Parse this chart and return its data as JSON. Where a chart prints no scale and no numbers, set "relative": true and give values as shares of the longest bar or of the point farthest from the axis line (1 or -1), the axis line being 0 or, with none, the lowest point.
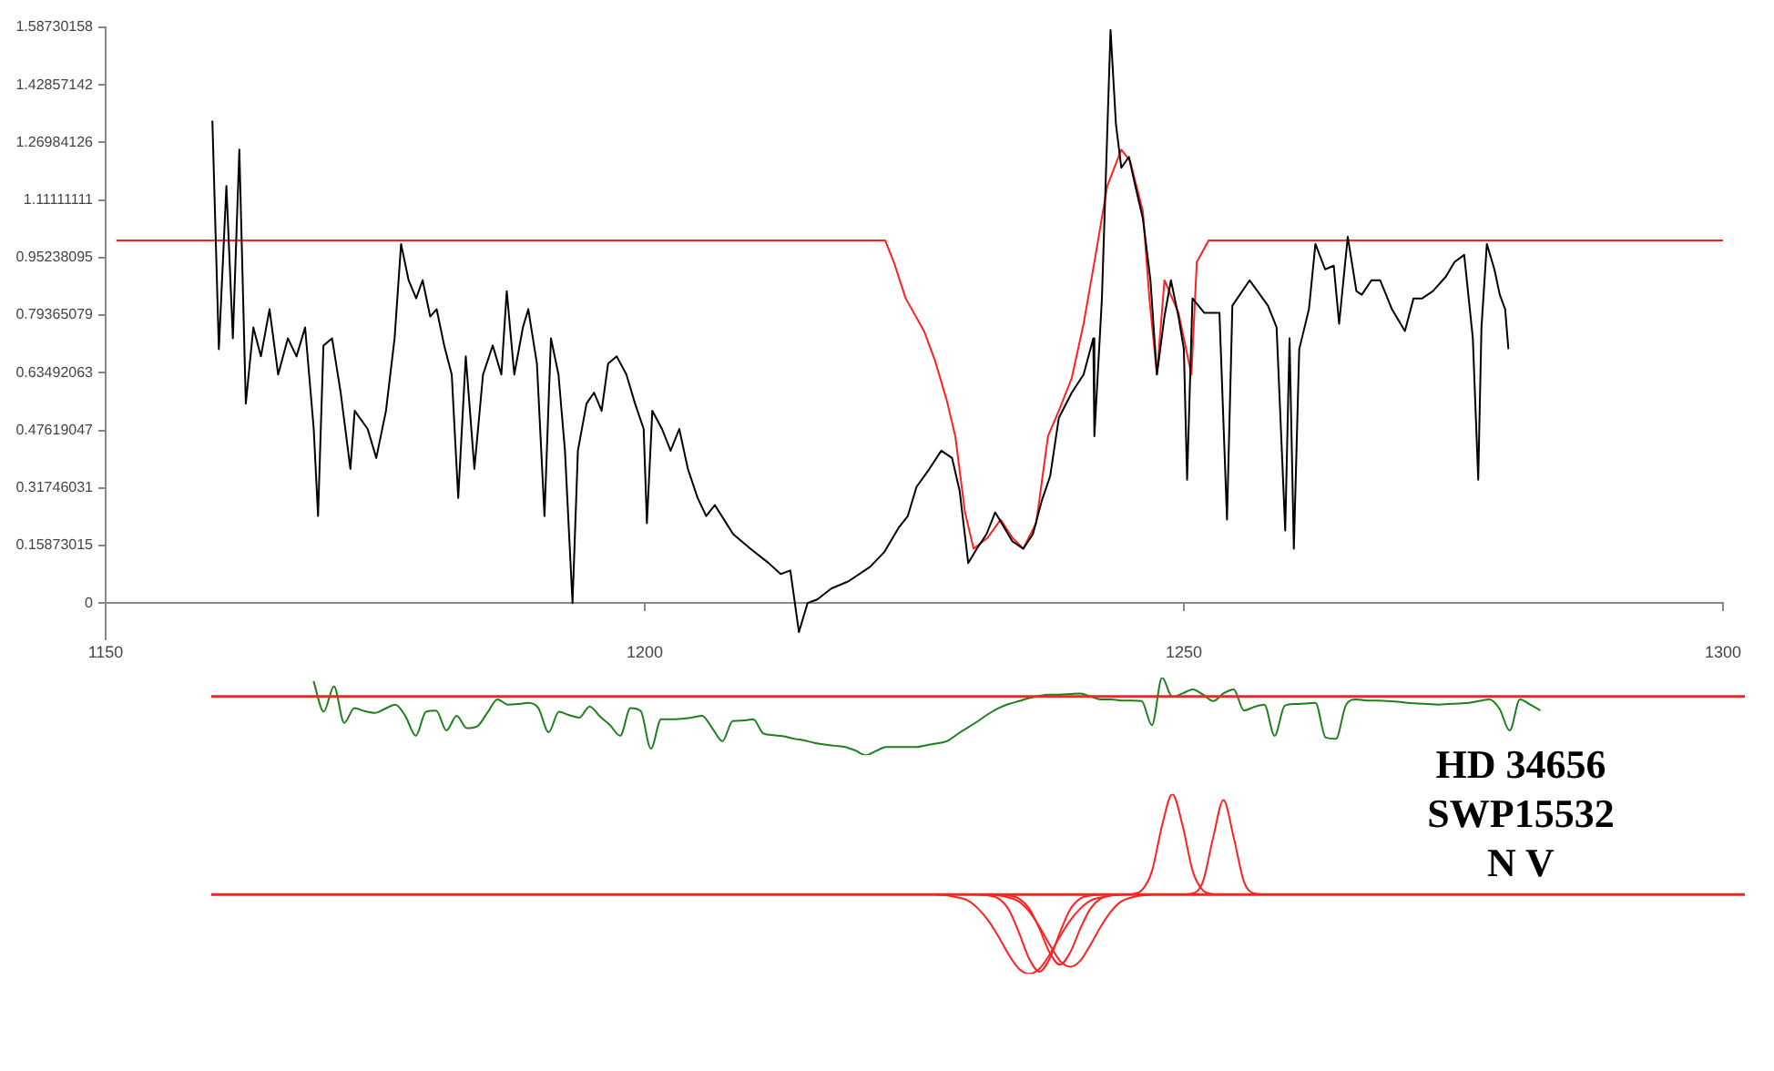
{
  "chart_data": [
    {
      "type": "line",
      "xlim": [
        1150,
        1300
      ],
      "xticks": [
        1150,
        1200,
        1250,
        1300
      ],
      "ylim": [
        -0.1,
        1.58730158
      ],
      "yticks": [
        0,
        0.15873015,
        0.31746031,
        0.47619047,
        0.63492063,
        0.79365079,
        0.95238095,
        1.11111111,
        1.26984126,
        1.42857142,
        1.58730158
      ],
      "series": [
        {
          "color": "#000000",
          "x": [
            1159.9,
            1160.5,
            1161.2,
            1161.8,
            1162.4,
            1163.0,
            1163.7,
            1164.4,
            1165.2,
            1166.0,
            1166.9,
            1167.7,
            1168.5,
            1169.3,
            1169.7,
            1170.2,
            1171.0,
            1171.8,
            1172.7,
            1173.1,
            1174.3,
            1175.1,
            1176.0,
            1176.8,
            1177.4,
            1178.1,
            1178.8,
            1179.4,
            1180.1,
            1180.7,
            1181.4,
            1182.1,
            1182.7,
            1183.4,
            1184.2,
            1185.0,
            1185.9,
            1186.7,
            1187.2,
            1187.9,
            1188.7,
            1189.2,
            1190.0,
            1190.7,
            1191.3,
            1192.0,
            1192.6,
            1193.3,
            1193.8,
            1194.6,
            1195.3,
            1196.0,
            1196.6,
            1197.4,
            1198.3,
            1199.1,
            1199.9,
            1200.2,
            1200.7,
            1201.6,
            1202.4,
            1203.2,
            1204.0,
            1204.9,
            1205.7,
            1206.5,
            1208.2,
            1209.8,
            1211.5,
            1212.6,
            1213.5,
            1214.3,
            1215.1,
            1216.0,
            1217.3,
            1218.9,
            1220.9,
            1222.2,
            1223.6,
            1224.4,
            1225.2,
            1226.4,
            1227.5,
            1228.5,
            1229.2,
            1230.0,
            1230.8,
            1231.7,
            1232.5,
            1233.3,
            1234.1,
            1235.1,
            1236.0,
            1236.8,
            1237.6,
            1238.4,
            1239.6,
            1240.7,
            1241.6,
            1241.7,
            1242.4,
            1243.2,
            1243.7,
            1244.2,
            1244.9,
            1245.5,
            1246.2,
            1246.9,
            1247.5,
            1248.2,
            1248.8,
            1249.5,
            1250.0,
            1250.3,
            1250.8,
            1251.9,
            1253.3,
            1254.0,
            1254.5,
            1256.1,
            1257.8,
            1258.6,
            1259.4,
            1259.8,
            1260.2,
            1260.7,
            1261.6,
            1262.2,
            1263.1,
            1263.9,
            1264.4,
            1265.2,
            1266.0,
            1266.5,
            1267.4,
            1268.2,
            1269.3,
            1270.5,
            1271.3,
            1272.1,
            1273.1,
            1274.3,
            1275.1,
            1276.0,
            1276.8,
            1277.3,
            1277.6,
            1278.1,
            1278.8,
            1279.3,
            1279.8,
            1280.1
          ],
          "values": [
            1.33,
            0.7,
            1.15,
            0.73,
            1.25,
            0.55,
            0.76,
            0.68,
            0.81,
            0.63,
            0.73,
            0.68,
            0.76,
            0.48,
            0.24,
            0.71,
            0.73,
            0.58,
            0.37,
            0.53,
            0.48,
            0.4,
            0.53,
            0.73,
            0.99,
            0.89,
            0.84,
            0.89,
            0.79,
            0.81,
            0.71,
            0.63,
            0.29,
            0.68,
            0.37,
            0.63,
            0.71,
            0.63,
            0.86,
            0.63,
            0.76,
            0.81,
            0.66,
            0.24,
            0.73,
            0.63,
            0.42,
            0,
            0.42,
            0.55,
            0.58,
            0.53,
            0.66,
            0.68,
            0.63,
            0.55,
            0.48,
            0.22,
            0.53,
            0.48,
            0.42,
            0.48,
            0.37,
            0.29,
            0.24,
            0.27,
            0.19,
            0.15,
            0.11,
            0.08,
            0.09,
            -0.08,
            0,
            0.01,
            0.04,
            0.06,
            0.1,
            0.14,
            0.21,
            0.24,
            0.32,
            0.37,
            0.42,
            0.4,
            0.31,
            0.11,
            0.15,
            0.19,
            0.25,
            0.21,
            0.17,
            0.15,
            0.19,
            0.28,
            0.35,
            0.51,
            0.58,
            0.63,
            0.73,
            0.46,
            0.84,
            1.58,
            1.32,
            1.2,
            1.23,
            1.15,
            1.06,
            0.89,
            0.63,
            0.79,
            0.89,
            0.79,
            0.7,
            0.34,
            0.84,
            0.8,
            0.8,
            0.23,
            0.82,
            0.89,
            0.82,
            0.76,
            0.2,
            0.73,
            0.15,
            0.7,
            0.81,
            0.99,
            0.92,
            0.93,
            0.77,
            1.01,
            0.86,
            0.85,
            0.89,
            0.89,
            0.81,
            0.75,
            0.84,
            0.84,
            0.86,
            0.9,
            0.94,
            0.96,
            0.73,
            0.34,
            0.76,
            0.99,
            0.92,
            0.85,
            0.81,
            0.7
          ]
        },
        {
          "color": "#ff2020",
          "x": [
            1151,
            1222.3,
            1223.1,
            1224.2,
            1225.9,
            1226.9,
            1228.0,
            1228.8,
            1229.7,
            1230.5,
            1231.8,
            1233.0,
            1234.1,
            1235.1,
            1236.3,
            1237.4,
            1238.4,
            1239.6,
            1240.7,
            1241.7,
            1242.9,
            1244.2,
            1245.0,
            1246.2,
            1246.8,
            1247.5,
            1248.2,
            1249.5,
            1250.7,
            1251.2,
            1252.3,
            1300
          ],
          "values": [
            1,
            1,
            0.94,
            0.84,
            0.75,
            0.67,
            0.56,
            0.46,
            0.25,
            0.15,
            0.18,
            0.23,
            0.18,
            0.15,
            0.22,
            0.46,
            0.53,
            0.62,
            0.77,
            0.94,
            1.15,
            1.25,
            1.22,
            1.08,
            0.84,
            0.63,
            0.89,
            0.8,
            0.63,
            0.94,
            1,
            1
          ]
        }
      ]
    },
    {
      "type": "line",
      "relative": true,
      "ref_lines": [
        {
          "axis": "y",
          "value": 0,
          "color": "#ff2020"
        }
      ],
      "categories": [
        null,
        null,
        null,
        null,
        null,
        null,
        null,
        null,
        null,
        null,
        null,
        null,
        null,
        null,
        null,
        null,
        null,
        null,
        null,
        null,
        null,
        null,
        null,
        null,
        null,
        null,
        null,
        null,
        null,
        null,
        null,
        null,
        null,
        null,
        null,
        null,
        null,
        null,
        null,
        null,
        null,
        null,
        null,
        null,
        null,
        null,
        null,
        null,
        null,
        null,
        null,
        null,
        null,
        null,
        null,
        null,
        null,
        null,
        null,
        null,
        null,
        null,
        null,
        null,
        null,
        null,
        null,
        null,
        null,
        null,
        null,
        null,
        null,
        null,
        null,
        null,
        null,
        null,
        null,
        null,
        null,
        null,
        null,
        null,
        null,
        null,
        null,
        null,
        null,
        null,
        null,
        null,
        null,
        null,
        null,
        null,
        null,
        null,
        null,
        null,
        null,
        null,
        null,
        null,
        null,
        null,
        null,
        null,
        null,
        null,
        null,
        null,
        null,
        null,
        null,
        null,
        null,
        null,
        null,
        null,
        null,
        null,
        null,
        null,
        null,
        null,
        null,
        null,
        null,
        null,
        null,
        null,
        null,
        null,
        null,
        null,
        null,
        null,
        null,
        null,
        null,
        null,
        null,
        null,
        null,
        null,
        null,
        null,
        null,
        null,
        null
      ],
      "series": [
        {
          "color": "#1f7f1f",
          "values": [
            null,
            null,
            null,
            null,
            null,
            null,
            null,
            null,
            null,
            null,
            0.26,
            -0.26,
            0.17,
            -0.45,
            -0.2,
            -0.25,
            -0.28,
            -0.21,
            -0.14,
            -0.34,
            -0.67,
            -0.26,
            -0.24,
            -0.58,
            -0.33,
            -0.54,
            -0.51,
            -0.28,
            -0.05,
            -0.14,
            -0.13,
            -0.11,
            -0.2,
            -0.61,
            -0.26,
            -0.32,
            -0.36,
            -0.17,
            -0.34,
            -0.49,
            -0.67,
            -0.2,
            -0.25,
            -0.89,
            -0.39,
            -0.39,
            -0.38,
            -0.36,
            -0.33,
            -0.54,
            -0.76,
            -0.42,
            -0.41,
            -0.39,
            -0.63,
            -0.66,
            -0.68,
            -0.72,
            -0.75,
            -0.79,
            -0.82,
            -0.84,
            -0.86,
            -0.92,
            -1,
            -0.93,
            -0.86,
            -0.86,
            -0.86,
            -0.86,
            -0.83,
            -0.8,
            -0.76,
            -0.64,
            -0.53,
            -0.42,
            -0.3,
            -0.2,
            -0.13,
            -0.08,
            -0.03,
            0.01,
            0.03,
            0.03,
            0.04,
            0.05,
            0,
            -0.05,
            -0.05,
            -0.07,
            -0.07,
            -0.08,
            -0.49,
            0.32,
            -0.01,
            0.05,
            0.12,
            0.03,
            -0.08,
            0.05,
            0.12,
            -0.24,
            -0.18,
            -0.14,
            -0.67,
            -0.16,
            -0.13,
            -0.12,
            -0.11,
            -0.7,
            -0.72,
            -0.14,
            -0.05,
            -0.07,
            -0.07,
            -0.08,
            -0.09,
            -0.11,
            -0.12,
            -0.13,
            -0.14,
            -0.13,
            -0.12,
            -0.11,
            -0.08,
            -0.05,
            -0.21,
            -0.58,
            -0.05,
            -0.14,
            -0.24,
            null,
            null,
            null,
            null,
            null,
            null,
            null,
            null,
            null,
            null,
            null,
            null,
            null,
            null,
            null,
            null,
            null,
            null,
            null,
            null
          ]
        }
      ]
    },
    {
      "type": "line",
      "relative": true,
      "ref_lines": [
        {
          "axis": "y",
          "value": 0,
          "color": "#ff2020"
        }
      ],
      "annotations": [
        "HD 34656",
        "SWP15532",
        "N V"
      ],
      "categories": [
        null,
        null,
        null,
        null,
        null,
        null,
        null,
        null,
        null,
        null,
        null,
        null,
        null,
        null,
        null,
        null,
        null,
        null,
        null,
        null,
        null,
        null,
        null,
        null,
        null,
        null,
        null,
        null,
        null,
        null,
        null,
        null,
        null,
        null,
        null,
        null,
        null,
        null,
        null,
        null,
        null,
        null,
        null,
        null,
        null,
        null,
        null,
        null,
        null,
        null,
        null,
        null,
        null,
        null,
        null,
        null,
        null,
        null,
        null,
        null,
        null,
        null,
        null,
        null,
        null,
        null,
        null,
        null,
        null,
        null,
        null,
        null,
        null,
        null,
        null,
        null,
        null,
        null,
        null,
        null,
        null,
        null,
        null,
        null,
        null,
        null,
        null,
        null,
        null,
        null,
        null,
        null,
        null,
        null,
        null,
        null,
        null,
        null,
        null,
        null,
        null,
        null,
        null,
        null,
        null,
        null,
        null,
        null,
        null,
        null,
        null,
        null,
        null,
        null,
        null,
        null,
        null,
        null,
        null,
        null,
        null,
        null,
        null,
        null,
        null,
        null,
        null,
        null,
        null,
        null,
        null,
        null,
        null,
        null,
        null,
        null,
        null,
        null,
        null,
        null,
        null,
        null,
        null,
        null,
        null,
        null,
        null,
        null,
        null,
        null,
        null
      ],
      "series": [
        {
          "color": "#ff2020",
          "values": [
            null,
            null,
            null,
            null,
            null,
            null,
            null,
            null,
            null,
            null,
            null,
            null,
            null,
            null,
            null,
            null,
            null,
            null,
            null,
            null,
            null,
            null,
            null,
            null,
            null,
            null,
            null,
            null,
            null,
            null,
            null,
            null,
            null,
            null,
            null,
            null,
            null,
            null,
            null,
            null,
            null,
            null,
            null,
            null,
            null,
            null,
            null,
            null,
            null,
            null,
            null,
            null,
            null,
            null,
            null,
            null,
            null,
            null,
            null,
            null,
            null,
            null,
            null,
            null,
            null,
            null,
            null,
            null,
            null,
            null,
            null,
            0,
            -0.01,
            -0.03,
            -0.06,
            -0.14,
            -0.26,
            -0.42,
            -0.6,
            -0.74,
            -0.79,
            -0.74,
            -0.6,
            -0.42,
            -0.26,
            -0.14,
            -0.06,
            -0.03,
            -0.01,
            0,
            null,
            null,
            null,
            null,
            null,
            null,
            null,
            null,
            null,
            null,
            null,
            null,
            null,
            null,
            null,
            null,
            null,
            null,
            null,
            null,
            null,
            null,
            null,
            null,
            null,
            null,
            null,
            null,
            null,
            null,
            null,
            null,
            null,
            null,
            null,
            null,
            null,
            null,
            null,
            null,
            null,
            null,
            null,
            null,
            null,
            null,
            null,
            null,
            null,
            null,
            null,
            null,
            null,
            null,
            null,
            null,
            null,
            null,
            null,
            null,
            null
          ]
        },
        {
          "color": "#ff2020",
          "values": [
            null,
            null,
            null,
            null,
            null,
            null,
            null,
            null,
            null,
            null,
            null,
            null,
            null,
            null,
            null,
            null,
            null,
            null,
            null,
            null,
            null,
            null,
            null,
            null,
            null,
            null,
            null,
            null,
            null,
            null,
            null,
            null,
            null,
            null,
            null,
            null,
            null,
            null,
            null,
            null,
            null,
            null,
            null,
            null,
            null,
            null,
            null,
            null,
            null,
            null,
            null,
            null,
            null,
            null,
            null,
            null,
            null,
            null,
            null,
            null,
            null,
            null,
            null,
            null,
            null,
            null,
            null,
            null,
            null,
            null,
            null,
            null,
            null,
            null,
            null,
            0,
            -0.01,
            -0.04,
            -0.15,
            -0.38,
            -0.64,
            -0.77,
            -0.64,
            -0.38,
            -0.15,
            -0.04,
            -0.01,
            0,
            null,
            null,
            null,
            null,
            null,
            null,
            null,
            null,
            null,
            null,
            null,
            null,
            null,
            null,
            null,
            null,
            null,
            null,
            null,
            null,
            null,
            null,
            null,
            null,
            null,
            null,
            null,
            null,
            null,
            null,
            null,
            null,
            null,
            null,
            null,
            null,
            null,
            null,
            null,
            null,
            null,
            null,
            null,
            null,
            null,
            null,
            null,
            null,
            null,
            null,
            null,
            null,
            null,
            null,
            null,
            null,
            null,
            null,
            null,
            null,
            null,
            null,
            null
          ]
        },
        {
          "color": "#ff2020",
          "values": [
            null,
            null,
            null,
            null,
            null,
            null,
            null,
            null,
            null,
            null,
            null,
            null,
            null,
            null,
            null,
            null,
            null,
            null,
            null,
            null,
            null,
            null,
            null,
            null,
            null,
            null,
            null,
            null,
            null,
            null,
            null,
            null,
            null,
            null,
            null,
            null,
            null,
            null,
            null,
            null,
            null,
            null,
            null,
            null,
            null,
            null,
            null,
            null,
            null,
            null,
            null,
            null,
            null,
            null,
            null,
            null,
            null,
            null,
            null,
            null,
            null,
            null,
            null,
            null,
            null,
            null,
            null,
            null,
            null,
            null,
            null,
            null,
            null,
            null,
            null,
            null,
            null,
            0,
            -0.01,
            -0.04,
            -0.14,
            -0.34,
            -0.58,
            -0.7,
            -0.58,
            -0.34,
            -0.14,
            -0.04,
            -0.01,
            0,
            null,
            null,
            null,
            null,
            null,
            null,
            null,
            null,
            null,
            null,
            null,
            null,
            null,
            null,
            null,
            null,
            null,
            null,
            null,
            null,
            null,
            null,
            null,
            null,
            null,
            null,
            null,
            null,
            null,
            null,
            null,
            null,
            null,
            null,
            null,
            null,
            null,
            null,
            null,
            null,
            null,
            null,
            null,
            null,
            null,
            null,
            null,
            null,
            null,
            null,
            null,
            null,
            null,
            null,
            null,
            null,
            null,
            null,
            null,
            null,
            null
          ]
        },
        {
          "color": "#ff2020",
          "values": [
            null,
            null,
            null,
            null,
            null,
            null,
            null,
            null,
            null,
            null,
            null,
            null,
            null,
            null,
            null,
            null,
            null,
            null,
            null,
            null,
            null,
            null,
            null,
            null,
            null,
            null,
            null,
            null,
            null,
            null,
            null,
            null,
            null,
            null,
            null,
            null,
            null,
            null,
            null,
            null,
            null,
            null,
            null,
            null,
            null,
            null,
            null,
            null,
            null,
            null,
            null,
            null,
            null,
            null,
            null,
            null,
            null,
            null,
            null,
            null,
            null,
            null,
            null,
            null,
            null,
            null,
            null,
            null,
            null,
            null,
            null,
            null,
            null,
            null,
            null,
            null,
            0,
            -0.01,
            -0.03,
            -0.07,
            -0.17,
            -0.32,
            -0.5,
            -0.66,
            -0.72,
            -0.66,
            -0.5,
            -0.32,
            -0.17,
            -0.07,
            -0.03,
            -0.01,
            0,
            null,
            null,
            null,
            null,
            null,
            null,
            null,
            null,
            null,
            null,
            null,
            null,
            null,
            null,
            null,
            null,
            null,
            null,
            null,
            null,
            null,
            null,
            null,
            null,
            null,
            null,
            null,
            null,
            null,
            null,
            null,
            null,
            null,
            null,
            null,
            null,
            null,
            null,
            null,
            null,
            null,
            null,
            null,
            null,
            null,
            null,
            null,
            null,
            null,
            null,
            null,
            null,
            null,
            null,
            null,
            null,
            null,
            null
          ]
        },
        {
          "color": "#ff2020",
          "values": [
            null,
            null,
            null,
            null,
            null,
            null,
            null,
            null,
            null,
            null,
            null,
            null,
            null,
            null,
            null,
            null,
            null,
            null,
            null,
            null,
            null,
            null,
            null,
            null,
            null,
            null,
            null,
            null,
            null,
            null,
            null,
            null,
            null,
            null,
            null,
            null,
            null,
            null,
            null,
            null,
            null,
            null,
            null,
            null,
            null,
            null,
            null,
            null,
            null,
            null,
            null,
            null,
            null,
            null,
            null,
            null,
            null,
            null,
            null,
            null,
            null,
            null,
            null,
            null,
            null,
            null,
            null,
            null,
            null,
            null,
            null,
            null,
            null,
            null,
            null,
            null,
            null,
            null,
            null,
            null,
            null,
            null,
            null,
            null,
            null,
            null,
            null,
            null,
            null,
            null,
            0,
            0.04,
            0.23,
            0.69,
            1,
            0.69,
            0.23,
            0.04,
            0,
            null,
            null,
            null,
            null,
            null,
            null,
            null,
            null,
            null,
            null,
            null,
            null,
            null,
            null,
            null,
            null,
            null,
            null,
            null,
            null,
            null,
            null,
            null,
            null,
            null,
            null,
            null,
            null,
            null,
            null,
            null,
            null,
            null,
            null,
            null,
            null,
            null,
            null,
            null,
            null,
            null,
            null,
            null,
            null,
            null,
            null,
            null,
            null,
            null,
            null,
            null,
            null
          ]
        },
        {
          "color": "#ff2020",
          "values": [
            null,
            null,
            null,
            null,
            null,
            null,
            null,
            null,
            null,
            null,
            null,
            null,
            null,
            null,
            null,
            null,
            null,
            null,
            null,
            null,
            null,
            null,
            null,
            null,
            null,
            null,
            null,
            null,
            null,
            null,
            null,
            null,
            null,
            null,
            null,
            null,
            null,
            null,
            null,
            null,
            null,
            null,
            null,
            null,
            null,
            null,
            null,
            null,
            null,
            null,
            null,
            null,
            null,
            null,
            null,
            null,
            null,
            null,
            null,
            null,
            null,
            null,
            null,
            null,
            null,
            null,
            null,
            null,
            null,
            null,
            null,
            null,
            null,
            null,
            null,
            null,
            null,
            null,
            null,
            null,
            null,
            null,
            null,
            null,
            null,
            null,
            null,
            null,
            null,
            null,
            null,
            null,
            null,
            null,
            null,
            0,
            0.01,
            0.13,
            0.57,
            0.94,
            0.57,
            0.13,
            0.01,
            0,
            null,
            null,
            null,
            null,
            null,
            null,
            null,
            null,
            null,
            null,
            null,
            null,
            null,
            null,
            null,
            null,
            null,
            null,
            null,
            null,
            null,
            null,
            null,
            null,
            null,
            null,
            null,
            null,
            null,
            null,
            null,
            null,
            null,
            null,
            null,
            null,
            null,
            null,
            null,
            null,
            null,
            null,
            null,
            null,
            null,
            null,
            null
          ]
        }
      ]
    }
  ]
}
